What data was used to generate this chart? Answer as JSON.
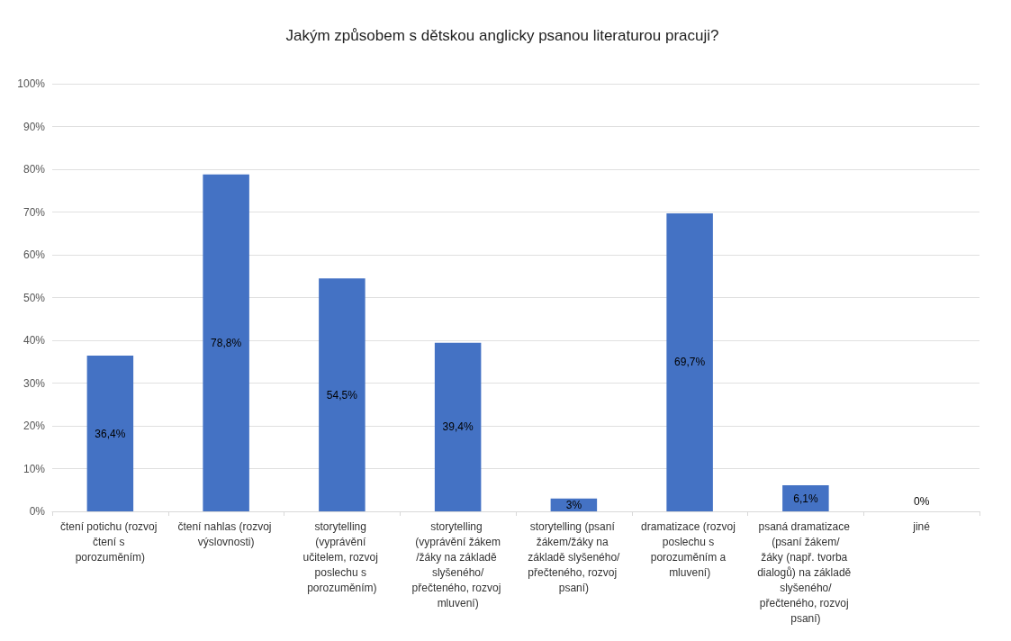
{
  "chart_data": {
    "type": "bar",
    "title": "Jakým způsobem s dětskou anglicky psanou literaturou pracuji?",
    "categories": [
      "čtení potichu (rozvoj čtení s porozuměním)",
      "čtení nahlas (rozvoj výslovnosti)",
      "storytelling (vyprávění učitelem, rozvoj poslechu s porozuměním)",
      "storytelling (vyprávění žákem/žáky na základě slyšeného/přečteného, rozvoj mluvení)",
      "storytelling (psaní žákem/žáky na základě slyšeného/přečteného, rozvoj psaní)",
      "dramatizace (rozvoj poslechu s porozuměním a mluvení)",
      "psaná dramatizace (psaní žákem/žáky (např. tvorba dialogů) na základě slyšeného/přečteného, rozvoj psaní)",
      "jiné"
    ],
    "values": [
      36.4,
      78.8,
      54.5,
      39.4,
      3,
      69.7,
      6.1,
      0
    ],
    "value_labels": [
      "36,4%",
      "78,8%",
      "54,5%",
      "39,4%",
      "3%",
      "69,7%",
      "6,1%",
      "0%"
    ],
    "color": "#4472c4",
    "ylim": [
      0,
      100
    ],
    "yticks": [
      {
        "value": 0,
        "label": "0%"
      },
      {
        "value": 10,
        "label": "10%"
      },
      {
        "value": 20,
        "label": "20%"
      },
      {
        "value": 30,
        "label": "30%"
      },
      {
        "value": 40,
        "label": "40%"
      },
      {
        "value": 50,
        "label": "50%"
      },
      {
        "value": 60,
        "label": "60%"
      },
      {
        "value": 70,
        "label": "70%"
      },
      {
        "value": 80,
        "label": "80%"
      },
      {
        "value": 90,
        "label": "90%"
      },
      {
        "value": 100,
        "label": "100%"
      }
    ],
    "grid": "y"
  }
}
